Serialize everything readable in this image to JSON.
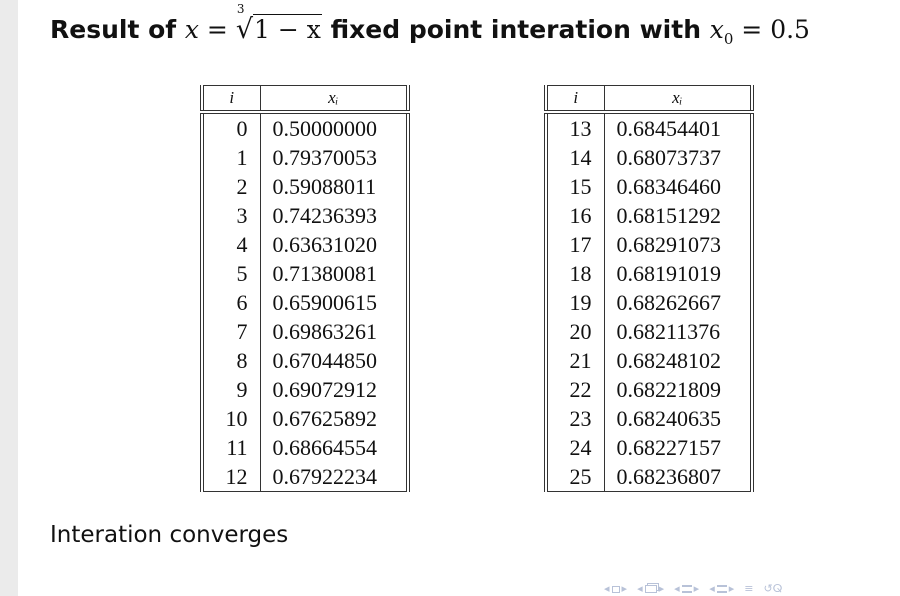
{
  "slide": {
    "title": {
      "prefix": "Result of ",
      "var_x": "x",
      "equals": " = ",
      "root_index": "3",
      "root_sign": "√",
      "radicand": "1 − x",
      "middle": " fixed point interation with ",
      "var_x0": "x",
      "sub_0": "0",
      "equals2": " = ",
      "value": "0.5"
    },
    "conclusion": "Interation converges"
  },
  "tables": {
    "left": {
      "header_i": "i",
      "header_x": "xᵢ",
      "rows": [
        {
          "i": "0",
          "x": "0.50000000"
        },
        {
          "i": "1",
          "x": "0.79370053"
        },
        {
          "i": "2",
          "x": "0.59088011"
        },
        {
          "i": "3",
          "x": "0.74236393"
        },
        {
          "i": "4",
          "x": "0.63631020"
        },
        {
          "i": "5",
          "x": "0.71380081"
        },
        {
          "i": "6",
          "x": "0.65900615"
        },
        {
          "i": "7",
          "x": "0.69863261"
        },
        {
          "i": "8",
          "x": "0.67044850"
        },
        {
          "i": "9",
          "x": "0.69072912"
        },
        {
          "i": "10",
          "x": "0.67625892"
        },
        {
          "i": "11",
          "x": "0.68664554"
        },
        {
          "i": "12",
          "x": "0.67922234"
        }
      ]
    },
    "right": {
      "header_i": "i",
      "header_x": "xᵢ",
      "rows": [
        {
          "i": "13",
          "x": "0.68454401"
        },
        {
          "i": "14",
          "x": "0.68073737"
        },
        {
          "i": "15",
          "x": "0.68346460"
        },
        {
          "i": "16",
          "x": "0.68151292"
        },
        {
          "i": "17",
          "x": "0.68291073"
        },
        {
          "i": "18",
          "x": "0.68191019"
        },
        {
          "i": "19",
          "x": "0.68262667"
        },
        {
          "i": "20",
          "x": "0.68211376"
        },
        {
          "i": "21",
          "x": "0.68248102"
        },
        {
          "i": "22",
          "x": "0.68221809"
        },
        {
          "i": "23",
          "x": "0.68240635"
        },
        {
          "i": "24",
          "x": "0.68227157"
        },
        {
          "i": "25",
          "x": "0.68236807"
        }
      ]
    }
  },
  "navigation": {
    "icons": [
      "nav-frame-prev-icon",
      "nav-subsection-icon",
      "nav-section-icon",
      "nav-slide-icon",
      "nav-align-icon",
      "nav-search-icon"
    ],
    "color": "#b8c2d8"
  }
}
